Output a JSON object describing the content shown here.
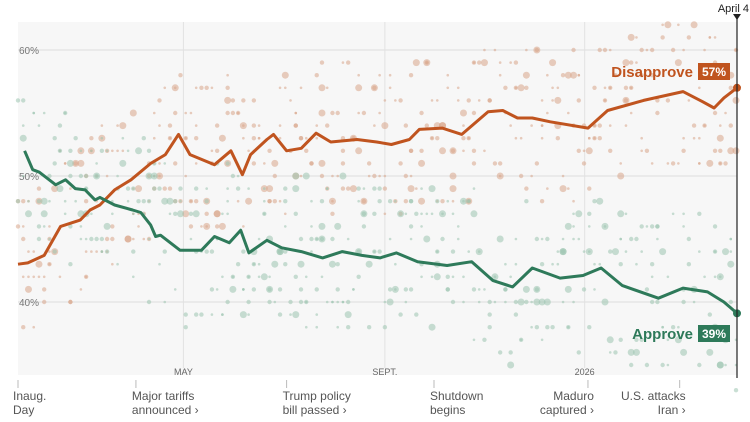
{
  "chart_data": {
    "type": "line",
    "title": "",
    "xlabel": "",
    "ylabel": "",
    "x_unit": "days since Jan. 20, 2025",
    "xlim": [
      0,
      439
    ],
    "ylim": [
      33,
      64
    ],
    "y_ticks": [
      {
        "value": 60,
        "label": "60%"
      },
      {
        "value": 50,
        "label": "50%"
      },
      {
        "value": 40,
        "label": "40%"
      }
    ],
    "x_ticks": [
      {
        "day": 101,
        "label": "MAY"
      },
      {
        "day": 224,
        "label": "SEPT."
      },
      {
        "day": 346,
        "label": "2026"
      }
    ],
    "current_marker": {
      "day": 439,
      "label": "April 4"
    },
    "series": [
      {
        "name": "Disapprove",
        "color": "#c0541f",
        "dot_color": "#d9a68a",
        "end_label": "57%",
        "points": [
          [
            0,
            43
          ],
          [
            6,
            43.1
          ],
          [
            16,
            43.7
          ],
          [
            26,
            46
          ],
          [
            38,
            46.5
          ],
          [
            44,
            47.3
          ],
          [
            50,
            47.7
          ],
          [
            59,
            48.9
          ],
          [
            69,
            49.7
          ],
          [
            81,
            51
          ],
          [
            90,
            51.7
          ],
          [
            98,
            53.3
          ],
          [
            105,
            51.7
          ],
          [
            120,
            50.9
          ],
          [
            130,
            52
          ],
          [
            137,
            50.1
          ],
          [
            142,
            51.7
          ],
          [
            152,
            52.9
          ],
          [
            156,
            53.3
          ],
          [
            164,
            52
          ],
          [
            173,
            52.2
          ],
          [
            182,
            53.4
          ],
          [
            191,
            52.7
          ],
          [
            207,
            52.9
          ],
          [
            219,
            52.7
          ],
          [
            228,
            52.5
          ],
          [
            239,
            52.9
          ],
          [
            245,
            53.7
          ],
          [
            259,
            53.8
          ],
          [
            271,
            53.3
          ],
          [
            287,
            55.1
          ],
          [
            296,
            55.2
          ],
          [
            305,
            54.6
          ],
          [
            314,
            54.6
          ],
          [
            325,
            54.3
          ],
          [
            348,
            53.8
          ],
          [
            360,
            55.2
          ],
          [
            382,
            56
          ],
          [
            406,
            56.7
          ],
          [
            418,
            55.9
          ],
          [
            425,
            55.4
          ],
          [
            431,
            56.2
          ],
          [
            439,
            57
          ]
        ]
      },
      {
        "name": "Approve",
        "color": "#2e7a5a",
        "dot_color": "#9cc4b0",
        "end_label": "39%",
        "points": [
          [
            4,
            52
          ],
          [
            9,
            50.5
          ],
          [
            13,
            50.3
          ],
          [
            23,
            49.3
          ],
          [
            29,
            49.7
          ],
          [
            35,
            49
          ],
          [
            41,
            48.9
          ],
          [
            47,
            48.1
          ],
          [
            50,
            48.3
          ],
          [
            59,
            47.7
          ],
          [
            70,
            47.3
          ],
          [
            75,
            47.1
          ],
          [
            81,
            46.1
          ],
          [
            84,
            45.2
          ],
          [
            87,
            45.3
          ],
          [
            99,
            44.1
          ],
          [
            112,
            44.1
          ],
          [
            120,
            45.2
          ],
          [
            129,
            44.7
          ],
          [
            136,
            45.7
          ],
          [
            141,
            43.9
          ],
          [
            152,
            44.9
          ],
          [
            161,
            44.3
          ],
          [
            173,
            44
          ],
          [
            186,
            43.5
          ],
          [
            198,
            44
          ],
          [
            210,
            43.7
          ],
          [
            221,
            43.5
          ],
          [
            231,
            43.9
          ],
          [
            244,
            43.2
          ],
          [
            262,
            42.9
          ],
          [
            277,
            43.2
          ],
          [
            290,
            41.7
          ],
          [
            302,
            41.2
          ],
          [
            314,
            42.7
          ],
          [
            331,
            41.9
          ],
          [
            345,
            42.1
          ],
          [
            356,
            42.7
          ],
          [
            369,
            41.3
          ],
          [
            391,
            40.3
          ],
          [
            406,
            41.1
          ],
          [
            421,
            40.8
          ],
          [
            431,
            40
          ],
          [
            439,
            39.1
          ]
        ]
      }
    ],
    "events": [
      {
        "day": 0,
        "line1": "Inaug.",
        "line2": "Day"
      },
      {
        "day": 72,
        "line1": "Major tariffs",
        "line2": "announced ›"
      },
      {
        "day": 164,
        "line1": "Trump policy",
        "line2": "bill passed ›"
      },
      {
        "day": 254,
        "line1": "Shutdown",
        "line2": "begins"
      },
      {
        "day": 348,
        "line1": "Maduro",
        "line2": "captured ›"
      },
      {
        "day": 404,
        "line1": "U.S. attacks",
        "line2": "Iran ›"
      }
    ]
  }
}
